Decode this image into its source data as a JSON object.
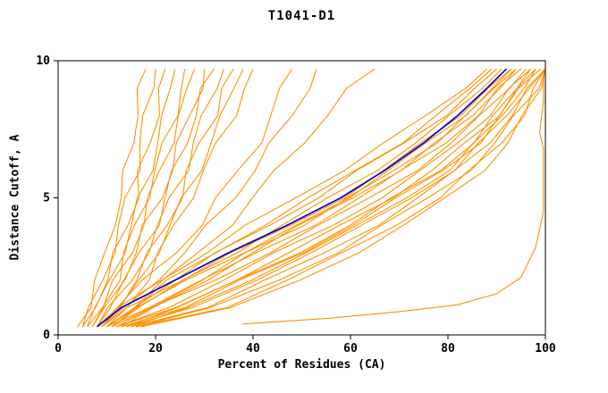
{
  "chart_data": {
    "type": "line",
    "title": "T1041-D1",
    "xlabel": "Percent of Residues (CA)",
    "ylabel": "Distance Cutoff, A",
    "xlim": [
      0,
      100
    ],
    "ylim": [
      0,
      10
    ],
    "xticks": [
      0,
      20,
      40,
      60,
      80,
      100
    ],
    "yticks": [
      0,
      5,
      10
    ],
    "grid": false,
    "legend": "none",
    "colors": {
      "models": "#ff9100",
      "highlight": "#0000cd",
      "axis": "#000000",
      "background": "#ffffff"
    },
    "y_levels": [
      0.3,
      1,
      2,
      3,
      4,
      5,
      6,
      7,
      8,
      9,
      9.7
    ],
    "series": [
      {
        "group": "orange",
        "x": [
          4,
          6,
          8,
          10,
          11,
          13,
          14,
          15,
          16,
          17,
          18
        ]
      },
      {
        "group": "orange",
        "x": [
          5,
          7,
          9,
          11,
          13,
          14,
          16,
          17,
          18,
          19,
          20
        ]
      },
      {
        "group": "orange",
        "x": [
          5,
          7,
          10,
          12,
          14,
          16,
          17,
          19,
          20,
          21,
          22
        ]
      },
      {
        "group": "orange",
        "x": [
          6,
          8,
          11,
          13,
          15,
          17,
          19,
          20,
          22,
          23,
          24
        ]
      },
      {
        "group": "orange",
        "x": [
          6,
          9,
          12,
          14,
          16,
          18,
          20,
          22,
          24,
          25,
          26
        ]
      },
      {
        "group": "orange",
        "x": [
          7,
          9,
          12,
          15,
          17,
          19,
          21,
          23,
          25,
          27,
          28
        ]
      },
      {
        "group": "orange",
        "x": [
          7,
          10,
          13,
          16,
          18,
          21,
          23,
          25,
          27,
          29,
          30
        ]
      },
      {
        "group": "orange",
        "x": [
          8,
          10,
          14,
          17,
          20,
          22,
          24,
          26,
          28,
          30,
          32
        ]
      },
      {
        "group": "orange",
        "x": [
          8,
          11,
          15,
          18,
          21,
          23,
          26,
          28,
          30,
          32,
          34
        ]
      },
      {
        "group": "orange",
        "x": [
          9,
          12,
          16,
          19,
          22,
          25,
          27,
          29,
          32,
          34,
          36
        ]
      },
      {
        "group": "orange",
        "x": [
          9,
          13,
          17,
          20,
          23,
          26,
          29,
          31,
          34,
          36,
          38
        ]
      },
      {
        "group": "orange",
        "x": [
          10,
          14,
          18,
          21,
          24,
          27,
          30,
          33,
          36,
          38,
          40
        ]
      },
      {
        "group": "orange",
        "x": [
          8,
          12,
          18,
          24,
          29,
          33,
          37,
          41,
          44,
          46,
          48
        ]
      },
      {
        "group": "orange",
        "x": [
          9,
          14,
          20,
          26,
          31,
          36,
          40,
          44,
          48,
          51,
          53
        ]
      },
      {
        "group": "orange",
        "x": [
          10,
          15,
          22,
          29,
          35,
          40,
          45,
          50,
          55,
          60,
          65
        ]
      },
      {
        "group": "orange",
        "x": [
          9,
          13,
          21,
          30,
          39,
          49,
          58,
          67,
          76,
          83,
          88
        ]
      },
      {
        "group": "orange",
        "x": [
          10,
          15,
          24,
          33,
          43,
          53,
          62,
          71,
          79,
          86,
          90
        ]
      },
      {
        "group": "orange",
        "x": [
          11,
          17,
          26,
          36,
          46,
          56,
          65,
          73,
          81,
          87,
          91
        ]
      },
      {
        "group": "orange",
        "x": [
          9,
          14,
          25,
          36,
          48,
          58,
          67,
          75,
          82,
          88,
          93
        ]
      },
      {
        "group": "orange",
        "x": [
          10,
          16,
          27,
          38,
          50,
          60,
          69,
          77,
          84,
          90,
          94
        ]
      },
      {
        "group": "orange",
        "x": [
          13,
          20,
          30,
          40,
          50,
          60,
          70,
          78,
          85,
          90,
          94
        ]
      },
      {
        "group": "orange",
        "x": [
          10,
          18,
          30,
          41,
          52,
          62,
          71,
          79,
          86,
          91,
          95
        ]
      },
      {
        "group": "orange",
        "x": [
          11,
          20,
          32,
          43,
          54,
          64,
          73,
          81,
          87,
          92,
          96
        ]
      },
      {
        "group": "orange",
        "x": [
          12,
          22,
          34,
          45,
          56,
          66,
          75,
          82,
          88,
          93,
          97
        ]
      },
      {
        "group": "orange",
        "x": [
          14,
          25,
          37,
          49,
          60,
          69,
          78,
          85,
          90,
          94,
          97
        ]
      },
      {
        "group": "orange",
        "x": [
          12,
          24,
          36,
          48,
          58,
          68,
          77,
          84,
          90,
          94,
          98
        ]
      },
      {
        "group": "orange",
        "x": [
          13,
          26,
          38,
          50,
          60,
          70,
          79,
          86,
          91,
          95,
          99
        ]
      },
      {
        "group": "orange",
        "x": [
          14,
          28,
          40,
          52,
          63,
          72,
          81,
          87,
          92,
          96,
          100
        ]
      },
      {
        "group": "orange",
        "x": [
          15,
          30,
          43,
          55,
          65,
          74,
          82,
          88,
          93,
          97,
          100
        ]
      },
      {
        "group": "orange",
        "x": [
          16,
          32,
          45,
          57,
          67,
          76,
          84,
          90,
          94,
          98,
          100
        ]
      },
      {
        "group": "orange",
        "x": [
          16,
          34,
          47,
          59,
          69,
          78,
          85,
          91,
          95,
          98,
          100
        ]
      },
      {
        "group": "orange",
        "x": [
          17,
          36,
          50,
          61,
          71,
          80,
          87,
          92,
          96,
          99,
          100
        ]
      },
      {
        "group": "orange",
        "x": [
          12,
          19,
          29,
          39,
          49,
          59,
          68,
          76,
          83,
          89,
          93
        ]
      },
      {
        "group": "orange",
        "x": [
          11,
          16,
          23,
          32,
          42,
          52,
          61,
          70,
          78,
          85,
          89
        ]
      },
      {
        "group": "orange",
        "x": [
          15,
          27,
          39,
          51,
          62,
          71,
          80,
          86,
          91,
          95,
          98
        ]
      },
      {
        "group": "orange",
        "points": [
          [
            38,
            0.4
          ],
          [
            55,
            0.6
          ],
          [
            70,
            0.85
          ],
          [
            82,
            1.1
          ],
          [
            90,
            1.5
          ],
          [
            95,
            2.1
          ],
          [
            98,
            3.2
          ],
          [
            99.6,
            4.5
          ],
          [
            99.6,
            6.8
          ],
          [
            98.8,
            7.4
          ],
          [
            99.6,
            8.5
          ],
          [
            99.6,
            9.7
          ]
        ]
      },
      {
        "group": "blue",
        "x": [
          8,
          13,
          24,
          35,
          47,
          58,
          67,
          75,
          82,
          88,
          92
        ]
      }
    ]
  }
}
